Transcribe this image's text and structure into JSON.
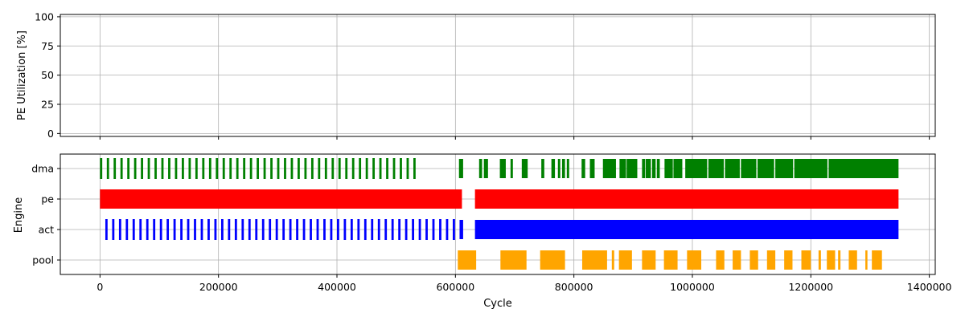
{
  "chart_data": [
    {
      "type": "line",
      "ylabel": "PE Utilization [%]",
      "xlabel": "",
      "xlim": [
        -67000,
        1410000
      ],
      "ylim": [
        -2.5,
        102
      ],
      "yticks": [
        0,
        25,
        50,
        75,
        100
      ],
      "ytick_labels": [
        "0",
        "25",
        "50",
        "75",
        "100"
      ],
      "xticks": [
        0,
        200000,
        400000,
        600000,
        800000,
        1000000,
        1200000,
        1400000
      ],
      "xtick_labels_shown": false,
      "grid": true,
      "series": []
    },
    {
      "type": "bar",
      "orientation": "horizontal-intervals",
      "xlabel": "Cycle",
      "ylabel": "Engine",
      "xlim": [
        -67000,
        1410000
      ],
      "xticks": [
        0,
        200000,
        400000,
        600000,
        800000,
        1000000,
        1200000,
        1400000
      ],
      "xtick_labels": [
        "0",
        "200000",
        "400000",
        "600000",
        "800000",
        "1000000",
        "1200000",
        "1400000"
      ],
      "categories": [
        "dma",
        "pe",
        "act",
        "pool"
      ],
      "grid": true,
      "series": [
        {
          "name": "dma",
          "color": "#008000",
          "tick_start": 0,
          "tick_step": 11500,
          "tick_count": 47,
          "tick_width": 3800,
          "intervals": [
            [
              606000,
              613000
            ],
            [
              640000,
              645000
            ],
            [
              648000,
              655000
            ],
            [
              675000,
              685000
            ],
            [
              693000,
              697000
            ],
            [
              712000,
              722000
            ],
            [
              745000,
              750000
            ],
            [
              762000,
              768000
            ],
            [
              773000,
              777000
            ],
            [
              780000,
              785000
            ],
            [
              788000,
              792000
            ],
            [
              813000,
              819000
            ],
            [
              827000,
              835000
            ],
            [
              849000,
              871000
            ],
            [
              877000,
              888000
            ],
            [
              889000,
              907000
            ],
            [
              915000,
              920000
            ],
            [
              921000,
              930000
            ],
            [
              932000,
              938000
            ],
            [
              940000,
              945000
            ],
            [
              953000,
              967000
            ],
            [
              968000,
              983000
            ],
            [
              988000,
              1025000
            ],
            [
              1027000,
              1053000
            ],
            [
              1055000,
              1080000
            ],
            [
              1082000,
              1108000
            ],
            [
              1110000,
              1138000
            ],
            [
              1140000,
              1170000
            ],
            [
              1172000,
              1228000
            ],
            [
              1230000,
              1348000
            ]
          ]
        },
        {
          "name": "pe",
          "color": "#ff0000",
          "intervals": [
            [
              0,
              611000
            ],
            [
              633000,
              1348000
            ]
          ]
        },
        {
          "name": "act",
          "color": "#0000ff",
          "tick_start": 9000,
          "tick_step": 11500,
          "tick_count": 52,
          "tick_width": 3800,
          "intervals": [
            [
              607000,
              613000
            ],
            [
              633000,
              1348000
            ]
          ]
        },
        {
          "name": "pool",
          "color": "#ffa500",
          "intervals": [
            [
              604000,
              635000
            ],
            [
              676000,
              720000
            ],
            [
              743000,
              785000
            ],
            [
              814000,
              856000
            ],
            [
              864000,
              868000
            ],
            [
              876000,
              898000
            ],
            [
              915000,
              938000
            ],
            [
              952000,
              975000
            ],
            [
              991000,
              1015000
            ],
            [
              1040000,
              1054000
            ],
            [
              1068000,
              1082000
            ],
            [
              1097000,
              1111000
            ],
            [
              1126000,
              1140000
            ],
            [
              1155000,
              1169000
            ],
            [
              1184000,
              1200000
            ],
            [
              1213000,
              1217000
            ],
            [
              1227000,
              1241000
            ],
            [
              1246000,
              1250000
            ],
            [
              1264000,
              1278000
            ],
            [
              1292000,
              1295000
            ],
            [
              1303000,
              1320000
            ]
          ]
        }
      ]
    }
  ]
}
